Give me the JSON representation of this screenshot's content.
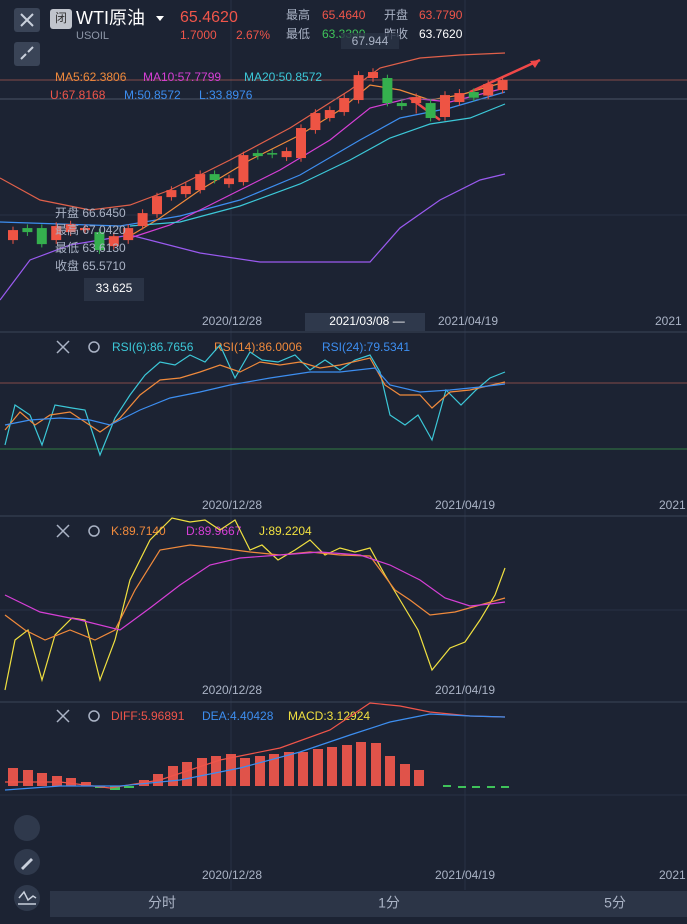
{
  "header": {
    "close_flag": "闭",
    "name": "WTI原油",
    "symbol": "USOIL",
    "price": "65.4620",
    "change": "1.7000",
    "change_pct": "2.67%",
    "stats": [
      {
        "label": "最高",
        "value": "65.4640"
      },
      {
        "label": "开盘",
        "value": "63.7790"
      },
      {
        "label": "最低",
        "value": "63.3390"
      },
      {
        "label": "昨收",
        "value": "63.7620"
      }
    ]
  },
  "main": {
    "high_mark": 67.944,
    "low_mark": 33.625,
    "ma": [
      "MA5:62.3806",
      "MA10:57.7799",
      "MA20:50.8572"
    ],
    "boll": [
      "U:67.8168",
      "M:50.8572",
      "L:33.8976"
    ],
    "tooltip": [
      "开盘 66.6450",
      "最高 67.0420",
      "最低 63.6130",
      "收盘 65.5710"
    ],
    "dates": [
      "2020/12/28",
      "2021/03/08 —",
      "2021/04/19",
      "2021"
    ],
    "candles": {
      "open": [
        40.42,
        42.09,
        42.09,
        40.42,
        41.53,
        41.8,
        41.53,
        39.58,
        40.42,
        42.37,
        44.03,
        46.39,
        46.81,
        47.37,
        49.59,
        48.2,
        48.48,
        52.51,
        52.51,
        51.95,
        51.82,
        55.71,
        57.38,
        58.21,
        59.88,
        62.94,
        62.94,
        59.46,
        59.46,
        59.46,
        57.52,
        59.6,
        60.99,
        60.5,
        61.27
      ],
      "high": [
        42.3,
        42.6,
        42.6,
        42.9,
        43.1,
        42.6,
        42.0,
        41.5,
        42.6,
        44.7,
        47.0,
        47.9,
        48.4,
        50.1,
        50.1,
        49.5,
        52.7,
        53.0,
        53.0,
        53.3,
        56.5,
        58.6,
        59.0,
        60.7,
        63.9,
        64.3,
        63.4,
        60.0,
        60.8,
        60.0,
        61.1,
        61.4,
        61.5,
        62.6,
        63.2
      ],
      "low": [
        39.9,
        41.0,
        39.4,
        39.9,
        41.0,
        41.3,
        38.5,
        39.1,
        39.9,
        41.9,
        43.5,
        45.9,
        46.3,
        46.9,
        48.3,
        47.7,
        48.0,
        51.6,
        51.8,
        51.4,
        51.3,
        55.2,
        56.9,
        57.7,
        59.4,
        62.4,
        59.0,
        58.5,
        58.0,
        56.9,
        57.0,
        59.1,
        59.7,
        60.0,
        60.8
      ],
      "close": [
        41.81,
        41.53,
        39.86,
        42.37,
        42.64,
        42.1,
        39.03,
        40.97,
        42.09,
        44.17,
        46.53,
        47.37,
        47.93,
        49.59,
        48.76,
        49.0,
        52.23,
        52.09,
        52.3,
        52.79,
        55.99,
        58.07,
        58.49,
        60.16,
        63.35,
        63.77,
        59.46,
        59.04,
        60.29,
        57.38,
        60.57,
        60.85,
        60.2,
        62.1,
        62.66
      ]
    }
  },
  "rsi": {
    "labels": [
      "RSI(6):86.7656",
      "RSI(14):86.0006",
      "RSI(24):79.5341"
    ],
    "dates": [
      "2020/12/28",
      "2021/04/19",
      "2021"
    ]
  },
  "kdj": {
    "labels": [
      "K:89.7140",
      "D:89.9667",
      "J:89.2204"
    ],
    "dates": [
      "2020/12/28",
      "2021/04/19"
    ]
  },
  "macd": {
    "labels": [
      "DIFF:5.96891",
      "DEA:4.40428",
      "MACD:3.12924"
    ],
    "dates": [
      "2020/12/28",
      "2021/04/19",
      "2021"
    ]
  },
  "tabs": [
    "分时",
    "1分",
    "5分"
  ]
}
